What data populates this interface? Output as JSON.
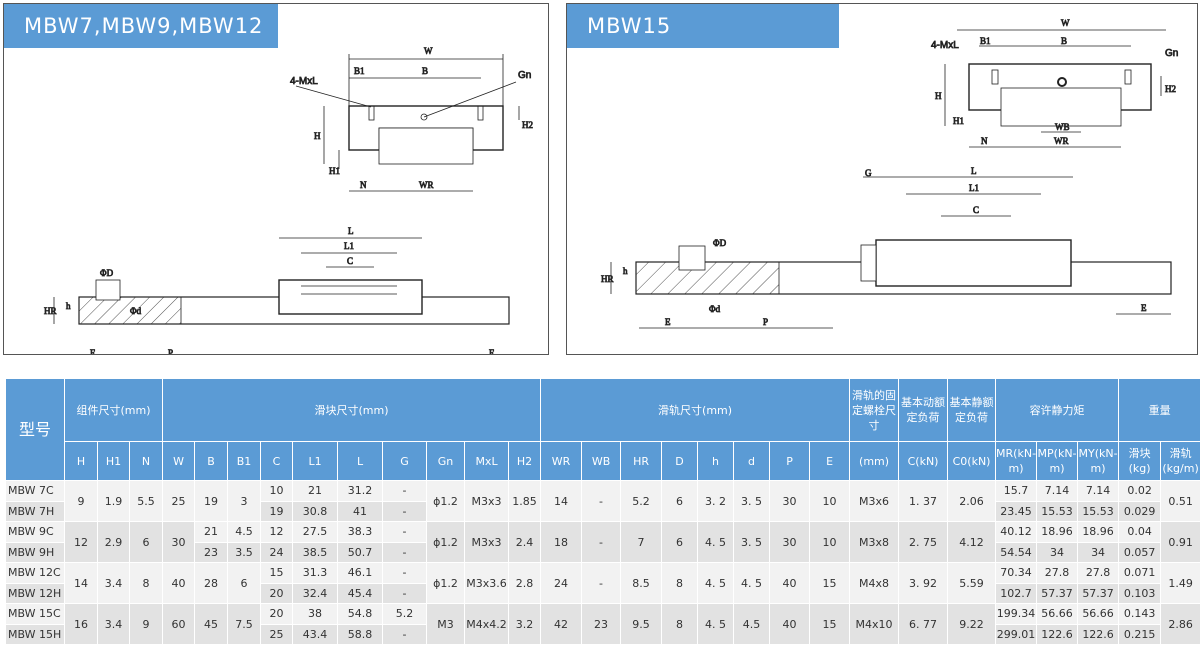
{
  "panels": [
    {
      "title": "MBW7,MBW9,MBW12",
      "labels": {
        "W": "W",
        "B1": "B1",
        "B": "B",
        "MxL": "4-MxL",
        "Gn": "Gn",
        "H": "H",
        "H1": "H1",
        "H2": "H2",
        "N": "N",
        "WR": "WR",
        "L": "L",
        "L1": "L1",
        "C": "C",
        "D": "ΦD",
        "HR": "HR",
        "h": "h",
        "d": "Φd",
        "E": "E",
        "P": "P"
      }
    },
    {
      "title": "MBW15",
      "labels": {
        "W": "W",
        "B1": "B1",
        "B": "B",
        "MxL": "4-MxL",
        "Gn": "Gn",
        "H": "H",
        "H1": "H1",
        "H2": "H2",
        "N": "N",
        "WB": "WB",
        "WR": "WR",
        "L": "L",
        "L1": "L1",
        "C": "C",
        "G": "G",
        "D": "ΦD",
        "HR": "HR",
        "h": "h",
        "d": "Φd",
        "E": "E",
        "P": "P"
      }
    }
  ],
  "table": {
    "model_header": "型号",
    "groups": [
      "组件尺寸(mm)",
      "滑块尺寸(mm)",
      "滑轨尺寸(mm)",
      "滑轨的固定螺栓尺寸",
      "基本动额定负荷",
      "基本静额定负荷",
      "容许静力矩",
      "重量"
    ],
    "cols": [
      "H",
      "H1",
      "N",
      "W",
      "B",
      "B1",
      "C",
      "L1",
      "L",
      "G",
      "Gn",
      "MxL",
      "H2",
      "WR",
      "WB",
      "HR",
      "D",
      "h",
      "d",
      "P",
      "E",
      "(mm)",
      "C(kN)",
      "C0(kN)",
      "MR(kN-m)",
      "MP(kN-m)",
      "MY(kN-m)",
      "滑块(kg)",
      "滑轨(kg/m)"
    ],
    "groups_data": [
      {
        "shared": {
          "H": "9",
          "H1": "1.9",
          "N": "5.5",
          "W": "25",
          "B": "19",
          "B1": "3",
          "Gn": "ϕ1.2",
          "MxL": "M3x3",
          "H2": "1.85",
          "WR": "14",
          "WB": "-",
          "HR": "5.2",
          "D": "6",
          "h": "3. 2",
          "d": "3. 5",
          "P": "30",
          "E": "10",
          "bolt": "M3x6",
          "C": "1. 37",
          "C0": "2.06",
          "rail": "0.51"
        },
        "rows": [
          {
            "model": "MBW 7C",
            "C": "10",
            "L1": "21",
            "L": "31.2",
            "G": "-",
            "MR": "15.7",
            "MP": "7.14",
            "MY": "7.14",
            "block": "0.02"
          },
          {
            "model": "MBW 7H",
            "C": "19",
            "L1": "30.8",
            "L": "41",
            "G": "-",
            "MR": "23.45",
            "MP": "15.53",
            "MY": "15.53",
            "block": "0.029"
          }
        ]
      },
      {
        "shared": {
          "H": "12",
          "H1": "2.9",
          "N": "6",
          "W": "30",
          "Gn": "ϕ1.2",
          "MxL": "M3x3",
          "H2": "2.4",
          "WR": "18",
          "WB": "-",
          "HR": "7",
          "D": "6",
          "h": "4. 5",
          "d": "3. 5",
          "P": "30",
          "E": "10",
          "bolt": "M3x8",
          "C": "2. 75",
          "C0": "4.12",
          "rail": "0.91"
        },
        "rows": [
          {
            "model": "MBW 9C",
            "B": "21",
            "B1": "4.5",
            "C": "12",
            "L1": "27.5",
            "L": "38.3",
            "G": "-",
            "MR": "40.12",
            "MP": "18.96",
            "MY": "18.96",
            "block": "0.04"
          },
          {
            "model": "MBW 9H",
            "B": "23",
            "B1": "3.5",
            "C": "24",
            "L1": "38.5",
            "L": "50.7",
            "G": "-",
            "MR": "54.54",
            "MP": "34",
            "MY": "34",
            "block": "0.057"
          }
        ]
      },
      {
        "shared": {
          "H": "14",
          "H1": "3.4",
          "N": "8",
          "W": "40",
          "B": "28",
          "B1": "6",
          "Gn": "ϕ1.2",
          "MxL": "M3x3.6",
          "H2": "2.8",
          "WR": "24",
          "WB": "-",
          "HR": "8.5",
          "D": "8",
          "h": "4. 5",
          "d": "4. 5",
          "P": "40",
          "E": "15",
          "bolt": "M4x8",
          "C": "3. 92",
          "C0": "5.59",
          "rail": "1.49"
        },
        "rows": [
          {
            "model": "MBW 12C",
            "C": "15",
            "L1": "31.3",
            "L": "46.1",
            "G": "-",
            "MR": "70.34",
            "MP": "27.8",
            "MY": "27.8",
            "block": "0.071"
          },
          {
            "model": "MBW 12H",
            "C": "20",
            "L1": "32.4",
            "L": "45.4",
            "G": "-",
            "MR": "102.7",
            "MP": "57.37",
            "MY": "57.37",
            "block": "0.103"
          }
        ]
      },
      {
        "shared": {
          "H": "16",
          "H1": "3.4",
          "N": "9",
          "W": "60",
          "B": "45",
          "B1": "7.5",
          "Gn": "M3",
          "MxL": "M4x4.2",
          "H2": "3.2",
          "WR": "42",
          "WB": "23",
          "HR": "9.5",
          "D": "8",
          "h": "4. 5",
          "d": "4.5",
          "P": "40",
          "E": "15",
          "bolt": "M4x10",
          "C": "6. 77",
          "C0": "9.22",
          "rail": "2.86"
        },
        "rows": [
          {
            "model": "MBW 15C",
            "C": "20",
            "L1": "38",
            "L": "54.8",
            "G": "5.2",
            "MR": "199.34",
            "MP": "56.66",
            "MY": "56.66",
            "block": "0.143"
          },
          {
            "model": "MBW 15H",
            "C": "25",
            "L1": "43.4",
            "L": "58.8",
            "G": "-",
            "MR": "299.01",
            "MP": "122.6",
            "MY": "122.6",
            "block": "0.215"
          }
        ]
      }
    ]
  },
  "colors": {
    "header": "#5b9bd5",
    "row_light": "#f2f2f2",
    "row_dark": "#e2e2e2"
  }
}
